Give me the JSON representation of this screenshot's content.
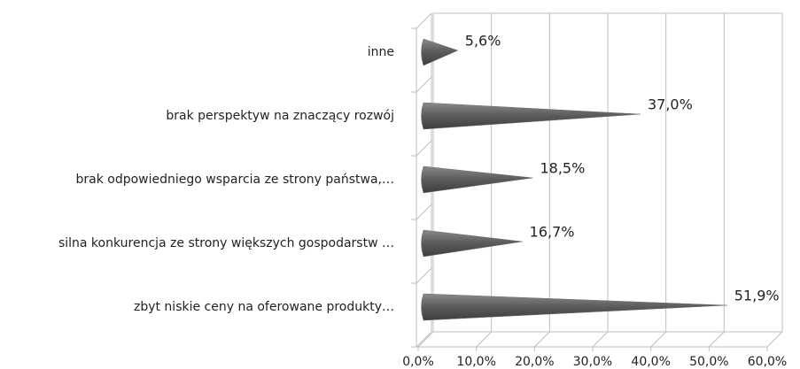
{
  "chart_data": {
    "type": "bar",
    "orientation": "horizontal",
    "categories": [
      "inne",
      "brak perspektyw na znaczący rozwój",
      "brak odpowiedniego wsparcia ze strony państwa,…",
      "silna konkurencja ze strony większych gospodarstw …",
      "zbyt niskie ceny na oferowane produkty…"
    ],
    "values": [
      5.6,
      37.0,
      18.5,
      16.7,
      51.9
    ],
    "value_labels": [
      "5,6%",
      "37,0%",
      "18,5%",
      "16,7%",
      "51,9%"
    ],
    "color": "#6e6e6e",
    "xlim": [
      0,
      60
    ],
    "xticks": [
      {
        "value": 0,
        "label": "0,0%"
      },
      {
        "value": 10,
        "label": "10,0%"
      },
      {
        "value": 20,
        "label": "20,0%"
      },
      {
        "value": 30,
        "label": "30,0%"
      },
      {
        "value": 40,
        "label": "40,0%"
      },
      {
        "value": 50,
        "label": "50,0%"
      },
      {
        "value": 60,
        "label": "60,0%"
      }
    ],
    "grid": true
  }
}
